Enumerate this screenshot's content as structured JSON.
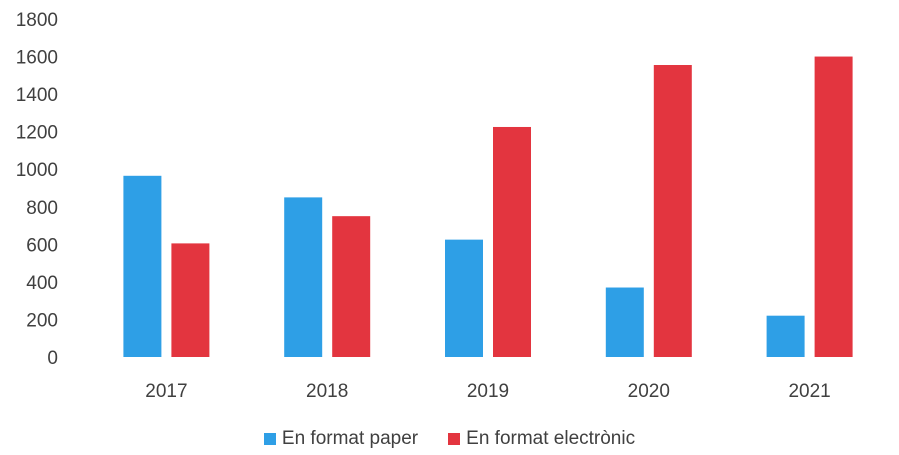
{
  "chart_data": {
    "type": "bar",
    "title": "",
    "xlabel": "",
    "ylabel": "",
    "categories": [
      "2017",
      "2018",
      "2019",
      "2020",
      "2021"
    ],
    "series": [
      {
        "name": "En format paper",
        "color": "#2e9fe6",
        "values": [
          965,
          850,
          625,
          370,
          220
        ]
      },
      {
        "name": "En format electrònic",
        "color": "#e3353f",
        "values": [
          605,
          750,
          1225,
          1555,
          1600
        ]
      }
    ],
    "ylim": [
      0,
      1800
    ],
    "yticks": [
      "0",
      "200",
      "400",
      "600",
      "800",
      "1000",
      "1200",
      "1400",
      "1600",
      "1800"
    ],
    "grid": false,
    "legend_position": "bottom"
  }
}
